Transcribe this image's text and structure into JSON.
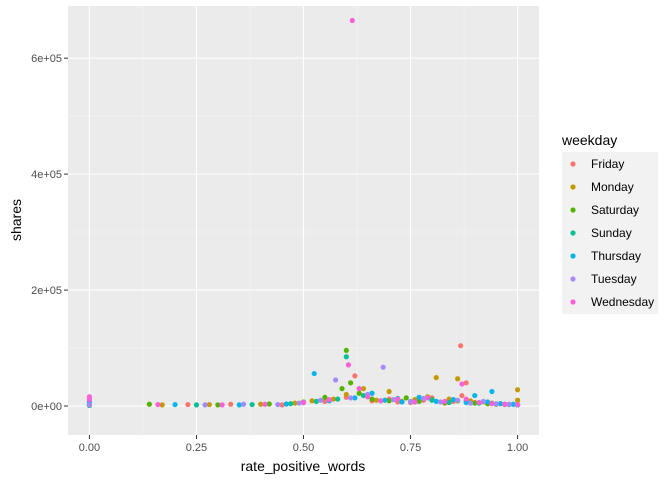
{
  "chart_data": {
    "type": "scatter",
    "xlabel": "rate_positive_words",
    "ylabel": "shares",
    "xlim": [
      -0.05,
      1.05
    ],
    "ylim": [
      -50000,
      690000
    ],
    "x_ticks": [
      0,
      0.25,
      0.5,
      0.75,
      1.0
    ],
    "x_tick_labels": [
      "0.00",
      "0.25",
      "0.50",
      "0.75",
      "1.00"
    ],
    "y_ticks": [
      0,
      200000,
      400000,
      600000
    ],
    "y_tick_labels": [
      "0e+00",
      "2e+05",
      "4e+05",
      "6e+05"
    ],
    "grid": true,
    "legend": {
      "title": "weekday",
      "placement": "right"
    },
    "series": [
      {
        "name": "Friday",
        "color": "#F8766D",
        "points": [
          [
            0.0,
            1200
          ],
          [
            0.23,
            2500
          ],
          [
            0.33,
            3000
          ],
          [
            0.45,
            2000
          ],
          [
            0.5,
            6000
          ],
          [
            0.55,
            8000
          ],
          [
            0.6,
            15000
          ],
          [
            0.62,
            52000
          ],
          [
            0.66,
            9000
          ],
          [
            0.7,
            12000
          ],
          [
            0.72,
            7000
          ],
          [
            0.75,
            6000
          ],
          [
            0.78,
            10000
          ],
          [
            0.8,
            14000
          ],
          [
            0.83,
            5000
          ],
          [
            0.85,
            8000
          ],
          [
            0.867,
            104000
          ],
          [
            0.87,
            18000
          ],
          [
            0.88,
            40000
          ],
          [
            0.9,
            6000
          ],
          [
            0.93,
            4000
          ],
          [
            0.95,
            3000
          ],
          [
            0.97,
            2500
          ],
          [
            1.0,
            3000
          ]
        ]
      },
      {
        "name": "Monday",
        "color": "#C49A00",
        "points": [
          [
            0.0,
            1500
          ],
          [
            0.17,
            2000
          ],
          [
            0.28,
            2500
          ],
          [
            0.4,
            3000
          ],
          [
            0.48,
            5000
          ],
          [
            0.52,
            9000
          ],
          [
            0.57,
            12000
          ],
          [
            0.6,
            20000
          ],
          [
            0.64,
            30000
          ],
          [
            0.67,
            10000
          ],
          [
            0.7,
            25000
          ],
          [
            0.73,
            8000
          ],
          [
            0.76,
            11000
          ],
          [
            0.79,
            16000
          ],
          [
            0.81,
            49000
          ],
          [
            0.84,
            12000
          ],
          [
            0.86,
            47000
          ],
          [
            0.89,
            9000
          ],
          [
            0.92,
            7000
          ],
          [
            0.94,
            5000
          ],
          [
            0.96,
            4000
          ],
          [
            1.0,
            28000
          ],
          [
            1.0,
            10000
          ]
        ]
      },
      {
        "name": "Saturday",
        "color": "#53B400",
        "points": [
          [
            0.0,
            1000
          ],
          [
            0.14,
            3000
          ],
          [
            0.3,
            2000
          ],
          [
            0.42,
            3500
          ],
          [
            0.5,
            7000
          ],
          [
            0.55,
            15000
          ],
          [
            0.59,
            30000
          ],
          [
            0.6,
            96000
          ],
          [
            0.61,
            40000
          ],
          [
            0.63,
            22000
          ],
          [
            0.66,
            12000
          ],
          [
            0.7,
            9000
          ],
          [
            0.74,
            14000
          ],
          [
            0.77,
            8000
          ],
          [
            0.8,
            11000
          ],
          [
            0.83,
            6000
          ],
          [
            0.86,
            9000
          ],
          [
            0.9,
            5000
          ],
          [
            0.93,
            4000
          ],
          [
            0.97,
            3000
          ],
          [
            1.0,
            2000
          ]
        ]
      },
      {
        "name": "Sunday",
        "color": "#00C094",
        "points": [
          [
            0.0,
            1500
          ],
          [
            0.25,
            2000
          ],
          [
            0.38,
            2500
          ],
          [
            0.47,
            4000
          ],
          [
            0.53,
            8000
          ],
          [
            0.58,
            12000
          ],
          [
            0.6,
            85000
          ],
          [
            0.64,
            18000
          ],
          [
            0.68,
            9000
          ],
          [
            0.72,
            13000
          ],
          [
            0.76,
            7000
          ],
          [
            0.8,
            10000
          ],
          [
            0.84,
            6000
          ],
          [
            0.88,
            9000
          ],
          [
            0.91,
            5000
          ],
          [
            0.95,
            3500
          ],
          [
            0.98,
            2500
          ],
          [
            1.0,
            2000
          ]
        ]
      },
      {
        "name": "Thursday",
        "color": "#00B6EB",
        "points": [
          [
            0.0,
            8000
          ],
          [
            0.0,
            3000
          ],
          [
            0.2,
            2500
          ],
          [
            0.35,
            2000
          ],
          [
            0.46,
            3500
          ],
          [
            0.5,
            6000
          ],
          [
            0.525,
            56000
          ],
          [
            0.56,
            9000
          ],
          [
            0.62,
            14000
          ],
          [
            0.66,
            22000
          ],
          [
            0.69,
            10000
          ],
          [
            0.73,
            7000
          ],
          [
            0.77,
            15000
          ],
          [
            0.81,
            8000
          ],
          [
            0.85,
            11000
          ],
          [
            0.88,
            6000
          ],
          [
            0.9,
            18000
          ],
          [
            0.93,
            7000
          ],
          [
            0.94,
            25000
          ],
          [
            0.96,
            4000
          ],
          [
            0.99,
            3000
          ],
          [
            1.0,
            2000
          ]
        ]
      },
      {
        "name": "Tuesday",
        "color": "#A58AFF",
        "points": [
          [
            0.0,
            2000
          ],
          [
            0.27,
            2000
          ],
          [
            0.36,
            3000
          ],
          [
            0.44,
            2500
          ],
          [
            0.49,
            5000
          ],
          [
            0.54,
            10000
          ],
          [
            0.575,
            45000
          ],
          [
            0.61,
            14000
          ],
          [
            0.65,
            20000
          ],
          [
            0.686,
            67000
          ],
          [
            0.71,
            11000
          ],
          [
            0.75,
            8000
          ],
          [
            0.78,
            13000
          ],
          [
            0.82,
            7000
          ],
          [
            0.86,
            10000
          ],
          [
            0.89,
            5000
          ],
          [
            0.92,
            8000
          ],
          [
            0.95,
            4000
          ],
          [
            0.98,
            3000
          ],
          [
            1.0,
            2000
          ]
        ]
      },
      {
        "name": "Wednesday",
        "color": "#FB61D7",
        "points": [
          [
            0.0,
            16000
          ],
          [
            0.0,
            11000
          ],
          [
            0.16,
            2500
          ],
          [
            0.31,
            2000
          ],
          [
            0.41,
            3000
          ],
          [
            0.5,
            6000
          ],
          [
            0.56,
            11000
          ],
          [
            0.605,
            71000
          ],
          [
            0.614,
            665000
          ],
          [
            0.63,
            30000
          ],
          [
            0.65,
            16000
          ],
          [
            0.68,
            9000
          ],
          [
            0.72,
            12000
          ],
          [
            0.76,
            7000
          ],
          [
            0.79,
            14000
          ],
          [
            0.83,
            8000
          ],
          [
            0.87,
            38000
          ],
          [
            0.88,
            12000
          ],
          [
            0.91,
            6000
          ],
          [
            0.94,
            4000
          ],
          [
            0.97,
            3000
          ],
          [
            1.0,
            2500
          ]
        ]
      }
    ]
  }
}
